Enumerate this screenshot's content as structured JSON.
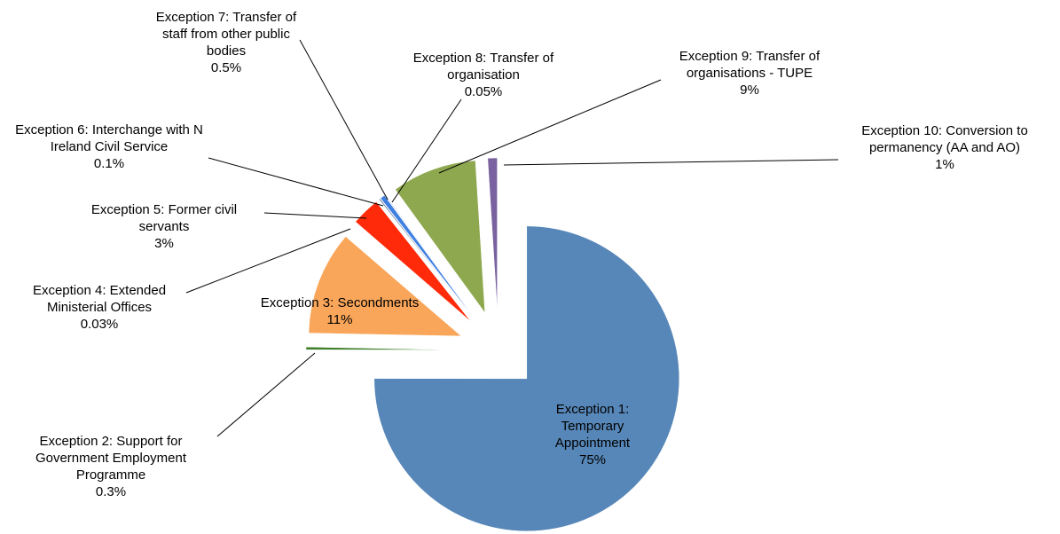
{
  "chart_data": {
    "type": "pie",
    "categories": [
      "Exception 1: Temporary Appointment",
      "Exception 2: Support for Government Employment Programme",
      "Exception 3: Secondments",
      "Exception 4: Extended Ministerial Offices",
      "Exception 5: Former civil servants",
      "Exception 6: Interchange with N Ireland Civil Service",
      "Exception 7: Transfer of staff from other public bodies",
      "Exception 8: Transfer of organisation",
      "Exception 9: Transfer of organisations - TUPE",
      "Exception 10: Conversion to permanency (AA and AO)"
    ],
    "values": [
      75,
      0.3,
      11,
      0.03,
      3,
      0.1,
      0.5,
      0.05,
      9,
      1
    ],
    "value_labels": [
      "75%",
      "0.3%",
      "11%",
      "0.03%",
      "3%",
      "0.1%",
      "0.5%",
      "0.05%",
      "9%",
      "1%"
    ],
    "colors": [
      "#5787b8",
      "#3f7f2a",
      "#f9a65a",
      "#c9a0c8",
      "#ff2a0a",
      "#2f4f7f",
      "#3f7fe0",
      "#2e6e9e",
      "#8ea84f",
      "#7a62a0"
    ]
  }
}
